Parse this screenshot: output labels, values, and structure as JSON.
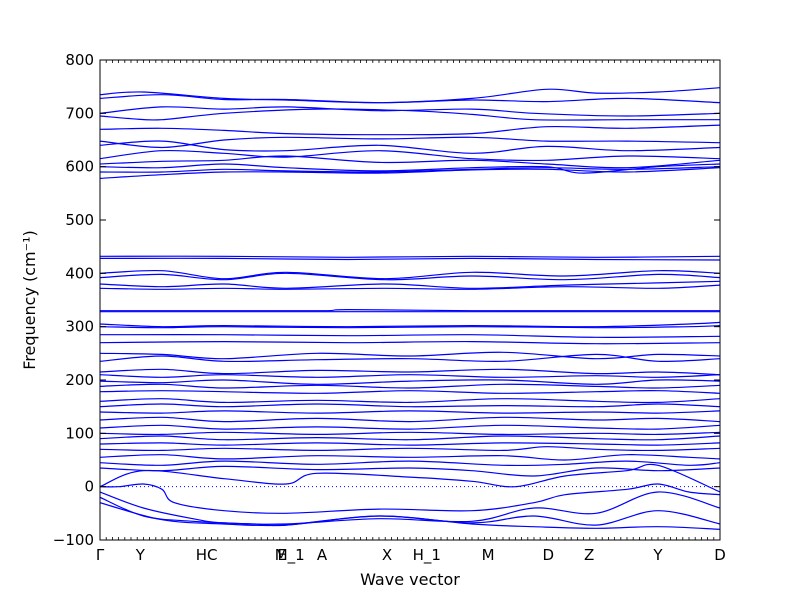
{
  "chart_data": {
    "type": "line",
    "title": "",
    "xlabel": "Wave vector",
    "ylabel": "Frequency (cm⁻¹)",
    "ylim": [
      -100,
      800
    ],
    "yticks": [
      -100,
      0,
      100,
      200,
      300,
      400,
      500,
      600,
      700,
      800
    ],
    "xlim": [
      0,
      1
    ],
    "high_symmetry_points": [
      {
        "label": "Γ",
        "x": 0.0
      },
      {
        "label": "Y",
        "x": 0.065
      },
      {
        "label": "HC",
        "x": 0.172
      },
      {
        "label": "E",
        "x": 0.294
      },
      {
        "label": "M_1",
        "x": 0.306
      },
      {
        "label": "A",
        "x": 0.358
      },
      {
        "label": "X",
        "x": 0.463
      },
      {
        "label": "H_1",
        "x": 0.527
      },
      {
        "label": "M",
        "x": 0.626
      },
      {
        "label": "D",
        "x": 0.723
      },
      {
        "label": "Z",
        "x": 0.789
      },
      {
        "label": "Y",
        "x": 0.9
      },
      {
        "label": "D",
        "x": 1.0
      }
    ],
    "zero_line": true,
    "line_color": "#0000ff",
    "series": [
      {
        "x": [
          0,
          0.07,
          0.2,
          0.3,
          0.45,
          0.6,
          0.72,
          0.8,
          0.9,
          1
        ],
        "y": [
          735,
          740,
          728,
          725,
          720,
          728,
          745,
          738,
          740,
          748
        ]
      },
      {
        "x": [
          0,
          0.1,
          0.2,
          0.3,
          0.45,
          0.6,
          0.72,
          0.85,
          1
        ],
        "y": [
          728,
          735,
          726,
          726,
          720,
          725,
          722,
          728,
          720
        ]
      },
      {
        "x": [
          0,
          0.1,
          0.2,
          0.3,
          0.45,
          0.6,
          0.7,
          0.85,
          1
        ],
        "y": [
          700,
          712,
          708,
          712,
          705,
          708,
          700,
          695,
          700
        ]
      },
      {
        "x": [
          0,
          0.05,
          0.1,
          0.2,
          0.35,
          0.5,
          0.6,
          0.7,
          0.85,
          1
        ],
        "y": [
          695,
          690,
          688,
          700,
          708,
          705,
          698,
          688,
          688,
          688
        ]
      },
      {
        "x": [
          0,
          0.1,
          0.2,
          0.3,
          0.45,
          0.6,
          0.72,
          0.85,
          1
        ],
        "y": [
          670,
          672,
          668,
          662,
          660,
          662,
          675,
          672,
          678
        ]
      },
      {
        "x": [
          0,
          0.1,
          0.2,
          0.3,
          0.45,
          0.6,
          0.72,
          0.85,
          1
        ],
        "y": [
          648,
          636,
          650,
          655,
          652,
          655,
          648,
          648,
          645
        ]
      },
      {
        "x": [
          0,
          0.1,
          0.2,
          0.3,
          0.45,
          0.6,
          0.72,
          0.85,
          1
        ],
        "y": [
          640,
          648,
          632,
          630,
          640,
          625,
          638,
          630,
          636
        ]
      },
      {
        "x": [
          0,
          0.1,
          0.2,
          0.3,
          0.45,
          0.6,
          0.72,
          0.85,
          1
        ],
        "y": [
          615,
          630,
          625,
          618,
          630,
          615,
          612,
          620,
          615
        ]
      },
      {
        "x": [
          0,
          0.1,
          0.2,
          0.3,
          0.45,
          0.6,
          0.72,
          0.85,
          1
        ],
        "y": [
          605,
          610,
          612,
          620,
          608,
          612,
          605,
          598,
          612
        ]
      },
      {
        "x": [
          0,
          0.1,
          0.2,
          0.3,
          0.45,
          0.6,
          0.72,
          0.78,
          0.9,
          1
        ],
        "y": [
          600,
          598,
          605,
          598,
          592,
          598,
          600,
          588,
          600,
          605
        ]
      },
      {
        "x": [
          0,
          0.1,
          0.2,
          0.3,
          0.45,
          0.6,
          0.72,
          0.85,
          1
        ],
        "y": [
          590,
          590,
          595,
          592,
          590,
          595,
          598,
          595,
          600
        ]
      },
      {
        "x": [
          0,
          0.1,
          0.2,
          0.3,
          0.45,
          0.6,
          0.72,
          0.85,
          1
        ],
        "y": [
          578,
          585,
          590,
          590,
          588,
          594,
          595,
          590,
          598
        ]
      },
      {
        "x": [
          0,
          0.2,
          0.4,
          0.6,
          0.8,
          1
        ],
        "y": [
          432,
          432,
          430,
          432,
          430,
          432
        ]
      },
      {
        "x": [
          0,
          0.2,
          0.4,
          0.6,
          0.8,
          1
        ],
        "y": [
          428,
          428,
          426,
          428,
          426,
          425
        ]
      },
      {
        "x": [
          0,
          0.1,
          0.2,
          0.3,
          0.46,
          0.6,
          0.75,
          0.9,
          1
        ],
        "y": [
          400,
          405,
          390,
          402,
          390,
          402,
          395,
          405,
          400
        ]
      },
      {
        "x": [
          0,
          0.1,
          0.2,
          0.3,
          0.46,
          0.6,
          0.75,
          0.9,
          1
        ],
        "y": [
          392,
          398,
          388,
          400,
          388,
          395,
          388,
          398,
          392
        ]
      },
      {
        "x": [
          0,
          0.1,
          0.2,
          0.3,
          0.46,
          0.6,
          0.75,
          0.9,
          1
        ],
        "y": [
          380,
          375,
          380,
          372,
          380,
          372,
          378,
          382,
          385
        ]
      },
      {
        "x": [
          0,
          0.1,
          0.2,
          0.3,
          0.46,
          0.6,
          0.75,
          0.9,
          1
        ],
        "y": [
          372,
          370,
          372,
          370,
          372,
          370,
          375,
          372,
          378
        ]
      },
      {
        "x": [
          0,
          0.2,
          0.36,
          0.4,
          0.6,
          0.8,
          1
        ],
        "y": [
          330,
          330,
          330,
          332,
          330,
          330,
          330
        ]
      },
      {
        "x": [
          0,
          0.2,
          0.4,
          0.6,
          0.8,
          1
        ],
        "y": [
          328,
          328,
          328,
          328,
          328,
          328
        ]
      },
      {
        "x": [
          0,
          0.1,
          0.2,
          0.4,
          0.6,
          0.8,
          0.95,
          1
        ],
        "y": [
          305,
          300,
          302,
          300,
          302,
          300,
          305,
          308
        ]
      },
      {
        "x": [
          0,
          0.1,
          0.2,
          0.4,
          0.6,
          0.8,
          0.95,
          1
        ],
        "y": [
          300,
          298,
          300,
          298,
          300,
          298,
          300,
          302
        ]
      },
      {
        "x": [
          0,
          0.2,
          0.4,
          0.6,
          0.8,
          1
        ],
        "y": [
          285,
          285,
          283,
          285,
          280,
          282
        ]
      },
      {
        "x": [
          0,
          0.2,
          0.4,
          0.6,
          0.8,
          1
        ],
        "y": [
          270,
          272,
          270,
          272,
          268,
          270
        ]
      },
      {
        "x": [
          0,
          0.1,
          0.2,
          0.35,
          0.5,
          0.65,
          0.8,
          0.9,
          1
        ],
        "y": [
          250,
          248,
          240,
          250,
          245,
          252,
          240,
          248,
          245
        ]
      },
      {
        "x": [
          0,
          0.1,
          0.2,
          0.35,
          0.5,
          0.65,
          0.8,
          0.9,
          1
        ],
        "y": [
          235,
          245,
          235,
          238,
          240,
          235,
          248,
          235,
          240
        ]
      },
      {
        "x": [
          0,
          0.1,
          0.2,
          0.35,
          0.5,
          0.65,
          0.8,
          0.9,
          1
        ],
        "y": [
          215,
          220,
          212,
          218,
          215,
          220,
          212,
          215,
          210
        ]
      },
      {
        "x": [
          0,
          0.1,
          0.2,
          0.35,
          0.5,
          0.65,
          0.8,
          0.9,
          1
        ],
        "y": [
          210,
          205,
          210,
          205,
          210,
          205,
          208,
          205,
          210
        ]
      },
      {
        "x": [
          0,
          0.1,
          0.2,
          0.35,
          0.5,
          0.65,
          0.8,
          0.9,
          1
        ],
        "y": [
          198,
          195,
          200,
          192,
          198,
          200,
          192,
          200,
          198
        ]
      },
      {
        "x": [
          0,
          0.1,
          0.2,
          0.35,
          0.5,
          0.65,
          0.8,
          0.9,
          1
        ],
        "y": [
          188,
          192,
          185,
          190,
          185,
          192,
          188,
          185,
          190
        ]
      },
      {
        "x": [
          0,
          0.1,
          0.2,
          0.35,
          0.5,
          0.65,
          0.8,
          0.9,
          1
        ],
        "y": [
          178,
          180,
          178,
          175,
          180,
          175,
          178,
          180,
          175
        ]
      },
      {
        "x": [
          0,
          0.1,
          0.2,
          0.35,
          0.5,
          0.65,
          0.8,
          0.9,
          1
        ],
        "y": [
          160,
          165,
          158,
          162,
          158,
          165,
          160,
          158,
          165
        ]
      },
      {
        "x": [
          0,
          0.1,
          0.2,
          0.35,
          0.5,
          0.65,
          0.8,
          0.9,
          1
        ],
        "y": [
          150,
          155,
          150,
          155,
          150,
          152,
          150,
          155,
          150
        ]
      },
      {
        "x": [
          0,
          0.1,
          0.2,
          0.35,
          0.5,
          0.65,
          0.8,
          0.9,
          1
        ],
        "y": [
          140,
          138,
          142,
          138,
          142,
          138,
          140,
          138,
          142
        ]
      },
      {
        "x": [
          0,
          0.1,
          0.2,
          0.35,
          0.5,
          0.65,
          0.8,
          0.9,
          1
        ],
        "y": [
          125,
          130,
          122,
          128,
          122,
          130,
          125,
          128,
          122
        ]
      },
      {
        "x": [
          0,
          0.1,
          0.2,
          0.35,
          0.5,
          0.65,
          0.8,
          0.9,
          1
        ],
        "y": [
          110,
          115,
          108,
          112,
          108,
          115,
          110,
          108,
          115
        ]
      },
      {
        "x": [
          0,
          0.1,
          0.2,
          0.35,
          0.5,
          0.65,
          0.8,
          0.9,
          1
        ],
        "y": [
          100,
          98,
          102,
          98,
          102,
          98,
          100,
          98,
          102
        ]
      },
      {
        "x": [
          0,
          0.1,
          0.2,
          0.35,
          0.5,
          0.65,
          0.8,
          0.9,
          1
        ],
        "y": [
          90,
          95,
          88,
          92,
          88,
          95,
          90,
          88,
          95
        ]
      },
      {
        "x": [
          0,
          0.1,
          0.2,
          0.35,
          0.5,
          0.65,
          0.8,
          0.9,
          1
        ],
        "y": [
          80,
          82,
          78,
          82,
          78,
          82,
          80,
          78,
          82
        ]
      },
      {
        "x": [
          0,
          0.1,
          0.2,
          0.35,
          0.5,
          0.65,
          0.72,
          0.8,
          0.9,
          1
        ],
        "y": [
          70,
          68,
          72,
          68,
          72,
          68,
          75,
          70,
          68,
          72
        ]
      },
      {
        "x": [
          0,
          0.1,
          0.2,
          0.35,
          0.5,
          0.65,
          0.75,
          0.85,
          0.95,
          1
        ],
        "y": [
          55,
          60,
          52,
          58,
          55,
          58,
          50,
          60,
          55,
          52
        ]
      },
      {
        "x": [
          0,
          0.1,
          0.2,
          0.35,
          0.5,
          0.65,
          0.75,
          0.85,
          0.95,
          1
        ],
        "y": [
          45,
          40,
          48,
          42,
          48,
          40,
          42,
          48,
          40,
          45
        ]
      },
      {
        "x": [
          0,
          0.1,
          0.2,
          0.35,
          0.5,
          0.6,
          0.7,
          0.8,
          0.9,
          1
        ],
        "y": [
          35,
          30,
          38,
          32,
          35,
          30,
          20,
          35,
          30,
          35
        ]
      },
      {
        "x": [
          0,
          0.07,
          0.2,
          0.3,
          0.35,
          0.5,
          0.6,
          0.67,
          0.75,
          0.85,
          0.9,
          1
        ],
        "y": [
          0,
          30,
          15,
          5,
          25,
          18,
          10,
          0,
          20,
          30,
          40,
          -10
        ]
      },
      {
        "x": [
          0,
          0.03,
          0.07,
          0.1,
          0.12,
          0.2,
          0.3,
          0.45,
          0.6,
          0.7,
          0.75,
          0.85,
          0.9,
          0.95,
          1
        ],
        "y": [
          0,
          0,
          5,
          -5,
          -30,
          -45,
          -50,
          -42,
          -45,
          -30,
          -15,
          -5,
          5,
          -10,
          -15
        ]
      },
      {
        "x": [
          0,
          0.07,
          0.15,
          0.2,
          0.3,
          0.45,
          0.6,
          0.7,
          0.8,
          0.9,
          1
        ],
        "y": [
          -10,
          -40,
          -60,
          -68,
          -70,
          -60,
          -65,
          -40,
          -50,
          -10,
          -40
        ]
      },
      {
        "x": [
          0,
          0.07,
          0.15,
          0.25,
          0.3,
          0.45,
          0.6,
          0.7,
          0.8,
          0.9,
          1
        ],
        "y": [
          -20,
          -55,
          -65,
          -70,
          -72,
          -55,
          -68,
          -55,
          -72,
          -45,
          -70
        ]
      },
      {
        "x": [
          0,
          0.1,
          0.2,
          0.3,
          0.45,
          0.6,
          0.7,
          0.8,
          0.9,
          1
        ],
        "y": [
          -30,
          -62,
          -70,
          -72,
          -55,
          -70,
          -75,
          -78,
          -75,
          -80
        ]
      }
    ]
  }
}
